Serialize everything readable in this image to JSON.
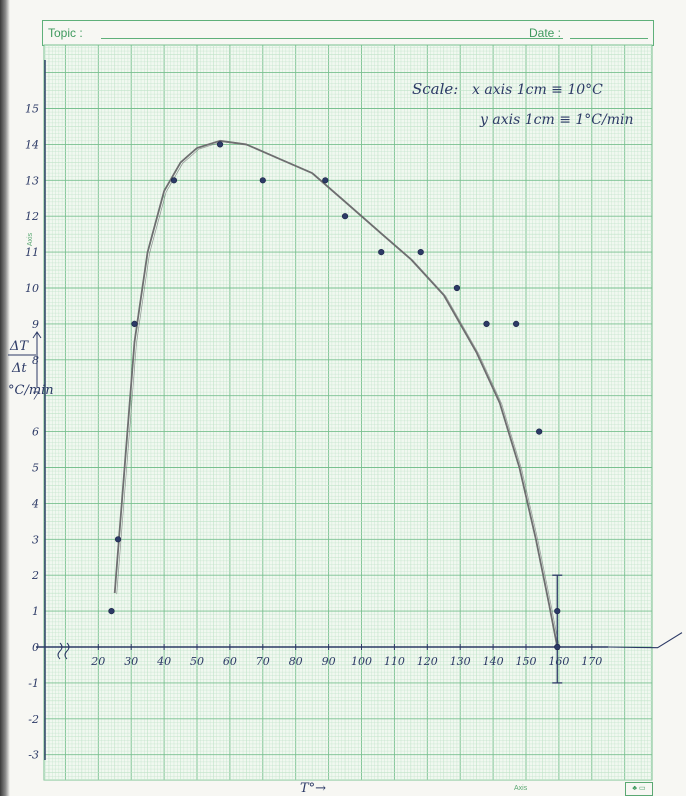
{
  "header": {
    "topic_label": "Topic :",
    "date_label": "Date :"
  },
  "margin_labels": {
    "axis_left": "Axis",
    "axis_bottom": "Axis"
  },
  "annotations": {
    "scale_title": "Scale:",
    "scale_x": "x axis  1cm ≡ 10°C",
    "scale_y": "y axis  1cm ≡ 1°C/min"
  },
  "colors": {
    "grid_minor": "#bfe3c8",
    "grid_major": "#78c08f",
    "ink": "#2c3a66",
    "pencil": "#6e6e70",
    "header_green": "#3f9a5e"
  },
  "chart_data": {
    "type": "scatter",
    "title": "",
    "xlabel": "T°→",
    "ylabel": "ΔT/Δt °C/min",
    "xlim": [
      5,
      190
    ],
    "ylim": [
      -3.7,
      17.5
    ],
    "x_ticks": [
      20,
      30,
      40,
      50,
      60,
      70,
      80,
      90,
      100,
      110,
      120,
      130,
      140,
      150,
      160,
      170
    ],
    "x_tick_labels": [
      "20",
      "30",
      "40",
      "50",
      "60",
      "70",
      "80",
      "90",
      "100",
      "110",
      "120",
      "130",
      "140",
      "150",
      "160",
      "170"
    ],
    "y_ticks": [
      -3,
      -2,
      -1,
      0,
      1,
      2,
      3,
      4,
      5,
      6,
      7,
      8,
      9,
      10,
      11,
      12,
      13,
      14,
      15
    ],
    "y_tick_labels": [
      "-3",
      "-2",
      "-1",
      "0",
      "1",
      "2",
      "3",
      "4",
      "5",
      "6",
      "7",
      "8",
      "9",
      "10",
      "11",
      "12",
      "13",
      "14",
      "15"
    ],
    "grid": true,
    "series": [
      {
        "x": [
          24,
          26,
          31,
          43,
          57,
          70,
          89,
          95,
          106,
          118,
          129,
          138,
          147,
          154,
          159.5,
          159.5
        ],
        "y": [
          1,
          3,
          9,
          13,
          14,
          13,
          13,
          12,
          11,
          11,
          10,
          9,
          9,
          6,
          1,
          0
        ]
      }
    ],
    "fit_curve": {
      "x": [
        25,
        28,
        31,
        35,
        40,
        45,
        50,
        57,
        65,
        75,
        85,
        95,
        105,
        115,
        125,
        135,
        142,
        148,
        153,
        157,
        159.5
      ],
      "y": [
        1.5,
        5,
        8.5,
        11,
        12.7,
        13.5,
        13.9,
        14.1,
        14.0,
        13.6,
        13.2,
        12.4,
        11.6,
        10.8,
        9.8,
        8.2,
        6.8,
        5.0,
        3.0,
        1.2,
        0
      ]
    },
    "error_bar": {
      "x": 159.5,
      "low": -1,
      "high": 2
    }
  }
}
